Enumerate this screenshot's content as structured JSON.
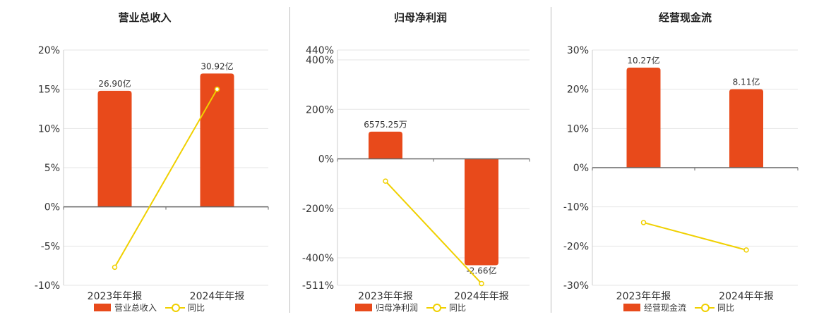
{
  "colors": {
    "bar": "#e84a1b",
    "line": "#f0d000",
    "grid": "#e6e6e6",
    "axis": "#666666"
  },
  "legend": {
    "line_label": "同比"
  },
  "chart_data": [
    {
      "type": "bar",
      "title": "营业总收入",
      "categories": [
        "2023年年报",
        "2024年年报"
      ],
      "bar_series": {
        "name": "营业总收入",
        "axis_values": [
          14.8,
          17.0
        ],
        "labels": [
          "26.90亿",
          "30.92亿"
        ]
      },
      "line_series": {
        "name": "同比",
        "values": [
          -7.7,
          15.0
        ]
      },
      "yticks": [
        20,
        15,
        10,
        5,
        0,
        -5,
        -10
      ],
      "ytick_labels": [
        "20%",
        "15%",
        "10%",
        "5%",
        "0%",
        "-5%",
        "-10%"
      ],
      "ylim": [
        -10,
        20
      ]
    },
    {
      "type": "bar",
      "title": "归母净利润",
      "categories": [
        "2023年年报",
        "2024年年报"
      ],
      "bar_series": {
        "name": "归母净利润",
        "axis_values": [
          110,
          -430
        ],
        "labels": [
          "6575.25万",
          "-2.66亿"
        ]
      },
      "line_series": {
        "name": "同比",
        "values": [
          -90,
          -504
        ]
      },
      "yticks": [
        440,
        400,
        200,
        0,
        -200,
        -400,
        -511
      ],
      "ytick_labels": [
        "440%",
        "400%",
        "200%",
        "0%",
        "-200%",
        "-400%",
        "-511%"
      ],
      "ylim": [
        -511,
        440
      ]
    },
    {
      "type": "bar",
      "title": "经营现金流",
      "categories": [
        "2023年年报",
        "2024年年报"
      ],
      "bar_series": {
        "name": "经营现金流",
        "axis_values": [
          25.5,
          20.0
        ],
        "labels": [
          "10.27亿",
          "8.11亿"
        ]
      },
      "line_series": {
        "name": "同比",
        "values": [
          -14.0,
          -21.0
        ]
      },
      "yticks": [
        30,
        20,
        10,
        0,
        -10,
        -20,
        -30
      ],
      "ytick_labels": [
        "30%",
        "20%",
        "10%",
        "0%",
        "-10%",
        "-20%",
        "-30%"
      ],
      "ylim": [
        -30,
        30
      ]
    }
  ]
}
